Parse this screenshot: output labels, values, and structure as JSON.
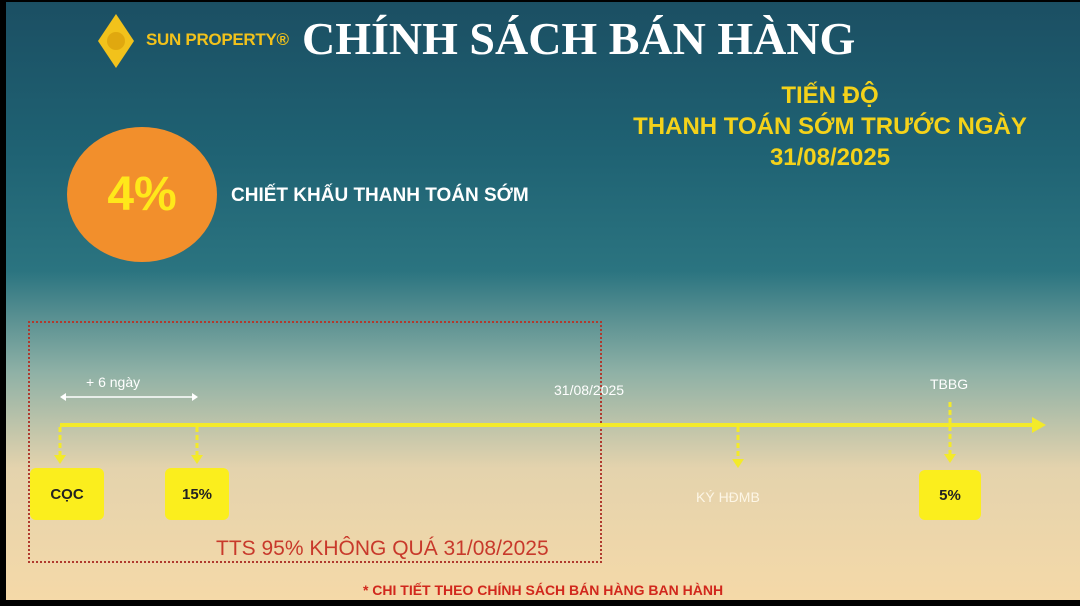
{
  "header": {
    "brand": "SUN PROPERTY®",
    "title": "CHÍNH SÁCH BÁN HÀNG"
  },
  "subtitle": {
    "line1": "TIẾN ĐỘ",
    "line2": "THANH TOÁN SỚM TRƯỚC NGÀY",
    "line3": "31/08/2025"
  },
  "discount": {
    "value": "4%",
    "label": "CHIẾT KHẤU THANH TOÁN SỚM"
  },
  "timeline": {
    "interval": "+ 6 ngày",
    "deadline": "31/08/2025",
    "milestones": [
      {
        "label": "CỌC",
        "style": "tile"
      },
      {
        "label": "15%",
        "style": "tile"
      },
      {
        "label": "KÝ HĐMB",
        "style": "text"
      },
      {
        "label": "5%",
        "style": "tile",
        "top_label": "TBBG"
      }
    ],
    "box_caption": "TTS 95% KHÔNG QUÁ 31/08/2025"
  },
  "footnote": "* CHI TIẾT THEO CHÍNH SÁCH BÁN HÀNG BAN HÀNH",
  "colors": {
    "accent": "#fbee1d",
    "orange": "#f28f2c",
    "red": "#c8392b",
    "gold": "#f2c21b"
  }
}
